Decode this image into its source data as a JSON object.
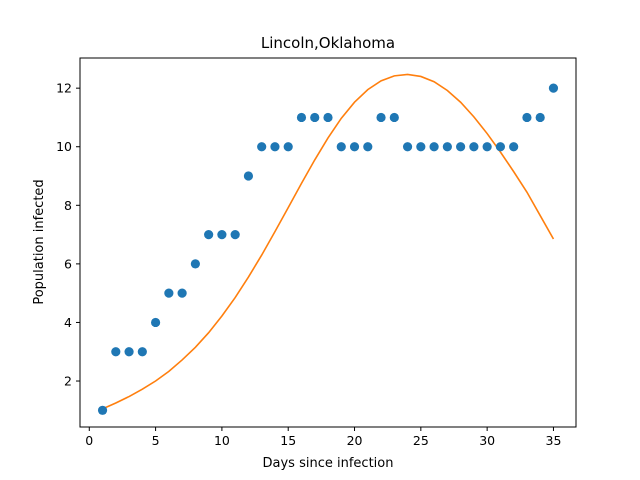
{
  "chart_data": {
    "type": "scatter",
    "title": "Lincoln,Oklahoma",
    "xlabel": "Days since infection",
    "ylabel": "Population infected",
    "xlim": [
      -0.7,
      36.7
    ],
    "ylim": [
      0.43,
      13.03
    ],
    "xticks": [
      0,
      5,
      10,
      15,
      20,
      25,
      30,
      35
    ],
    "yticks": [
      2,
      4,
      6,
      8,
      10,
      12
    ],
    "grid": false,
    "series": [
      {
        "kind": "scatter",
        "color": "#1f77b4",
        "x": [
          1,
          2,
          3,
          4,
          5,
          6,
          7,
          8,
          9,
          10,
          11,
          12,
          13,
          14,
          15,
          16,
          17,
          18,
          19,
          20,
          21,
          22,
          23,
          24,
          25,
          26,
          27,
          28,
          29,
          30,
          31,
          32,
          33,
          34,
          35
        ],
        "y": [
          1,
          3,
          3,
          3,
          4,
          5,
          5,
          6,
          7,
          7,
          7,
          9,
          10,
          10,
          10,
          11,
          11,
          11,
          10,
          10,
          10,
          11,
          11,
          10,
          10,
          10,
          10,
          10,
          10,
          10,
          10,
          10,
          11,
          11,
          12
        ]
      },
      {
        "kind": "line",
        "color": "#ff7f0e",
        "x": [
          1,
          2,
          3,
          4,
          5,
          6,
          7,
          8,
          9,
          10,
          11,
          12,
          13,
          14,
          15,
          16,
          17,
          18,
          19,
          20,
          21,
          22,
          23,
          24,
          25,
          26,
          27,
          28,
          29,
          30,
          31,
          32,
          33,
          34,
          35
        ],
        "y": [
          1.05,
          1.25,
          1.47,
          1.72,
          2.0,
          2.33,
          2.72,
          3.15,
          3.65,
          4.22,
          4.85,
          5.55,
          6.3,
          7.1,
          7.92,
          8.75,
          9.55,
          10.3,
          10.97,
          11.52,
          11.95,
          12.25,
          12.42,
          12.47,
          12.4,
          12.22,
          11.92,
          11.52,
          11.02,
          10.45,
          9.82,
          9.15,
          8.45,
          7.65,
          6.85
        ]
      }
    ]
  }
}
